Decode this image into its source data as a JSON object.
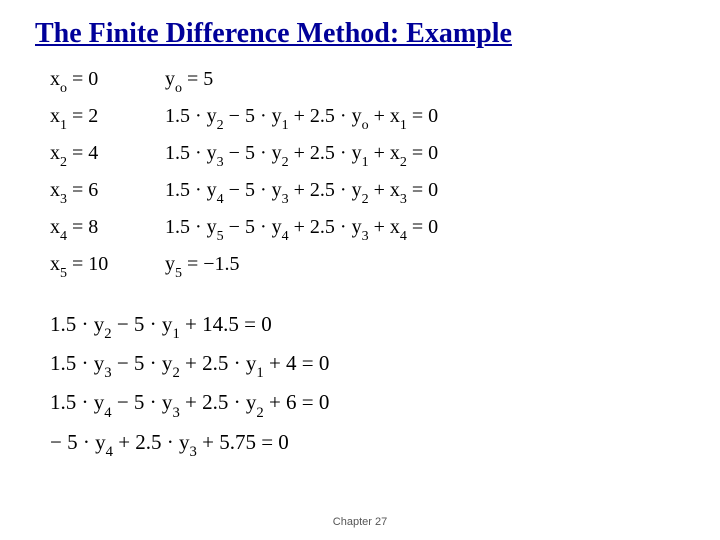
{
  "title": "The Finite Difference Method: Example",
  "block1": {
    "rows": [
      {
        "left_var": "x",
        "left_sub": "o",
        "left_val": "= 0",
        "right": "y",
        "right_sub": "o",
        "right_rest": " = 5"
      },
      {
        "left_var": "x",
        "left_sub": "1",
        "left_val": "= 2",
        "eq_html": "1.5 · y<sub class='sub'>2</sub> − 5 · y<sub class='sub'>1</sub> + 2.5 · y<sub class='sub'>o</sub> + x<sub class='sub'>1</sub> = 0"
      },
      {
        "left_var": "x",
        "left_sub": "2",
        "left_val": "= 4",
        "eq_html": "1.5 · y<sub class='sub'>3</sub> − 5 · y<sub class='sub'>2</sub> + 2.5 · y<sub class='sub'>1</sub> + x<sub class='sub'>2</sub> = 0"
      },
      {
        "left_var": "x",
        "left_sub": "3",
        "left_val": "= 6",
        "eq_html": "1.5 · y<sub class='sub'>4</sub> − 5 · y<sub class='sub'>3</sub> + 2.5 · y<sub class='sub'>2</sub> + x<sub class='sub'>3</sub> = 0"
      },
      {
        "left_var": "x",
        "left_sub": "4",
        "left_val": "= 8",
        "eq_html": "1.5 · y<sub class='sub'>5</sub> − 5 · y<sub class='sub'>4</sub> + 2.5 · y<sub class='sub'>3</sub> + x<sub class='sub'>4</sub> = 0"
      },
      {
        "left_var": "x",
        "left_sub": "5",
        "left_val": "= 10",
        "right": "y",
        "right_sub": "5",
        "right_rest": " = −1.5"
      }
    ]
  },
  "block2": {
    "equations": [
      "1.5 · y<sub class='sub'>2</sub> − 5 · y<sub class='sub'>1</sub> + 14.5 = 0",
      "1.5 · y<sub class='sub'>3</sub> − 5 · y<sub class='sub'>2</sub> + 2.5 · y<sub class='sub'>1</sub> + 4 = 0",
      "1.5 · y<sub class='sub'>4</sub> − 5 · y<sub class='sub'>3</sub> + 2.5 · y<sub class='sub'>2</sub> + 6 = 0",
      "− 5 · y<sub class='sub'>4</sub> + 2.5 · y<sub class='sub'>3</sub> + 5.75 = 0"
    ]
  },
  "footer": "Chapter 27"
}
